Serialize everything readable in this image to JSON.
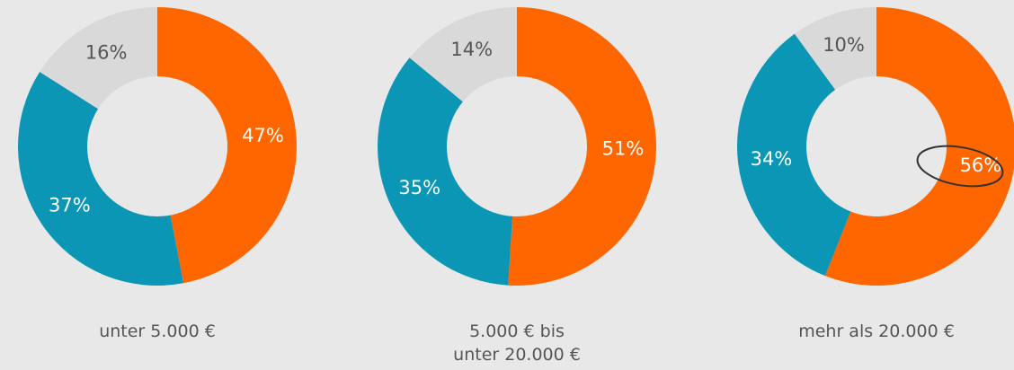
{
  "chart_data": [
    {
      "type": "pie",
      "title": "unter 5.000 €",
      "values": [
        47,
        37,
        16
      ],
      "value_labels": [
        "47%",
        "37%",
        "16%"
      ],
      "colors": [
        "#ff6600",
        "#0a96b4",
        "#d9d9d9"
      ]
    },
    {
      "type": "pie",
      "title": "5.000 € bis unter 20.000 €",
      "values": [
        51,
        35,
        14
      ],
      "value_labels": [
        "51%",
        "35%",
        "14%"
      ],
      "colors": [
        "#ff6600",
        "#0a96b4",
        "#d9d9d9"
      ]
    },
    {
      "type": "pie",
      "title": "mehr als 20.000 €",
      "values": [
        56,
        34,
        10
      ],
      "value_labels": [
        "56%",
        "34%",
        "10%"
      ],
      "colors": [
        "#ff6600",
        "#0a96b4",
        "#d9d9d9"
      ]
    }
  ]
}
